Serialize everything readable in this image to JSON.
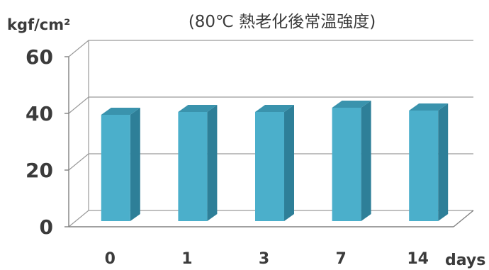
{
  "chart_data": {
    "type": "bar",
    "title": "(80℃ 熱老化後常溫強度)",
    "ylabel": "kgf/cm²",
    "xlabel": "days",
    "categories": [
      "0",
      "1",
      "3",
      "7",
      "14"
    ],
    "values": [
      43,
      44,
      44,
      45.5,
      44.5
    ],
    "ylim": [
      0,
      60
    ],
    "yticks": [
      0,
      20,
      40,
      60
    ],
    "grid": true,
    "style": "3d",
    "colors": {
      "bar_front": "#4bafcb",
      "bar_side": "#2e7f98",
      "bar_top": "#3a93ad"
    }
  }
}
